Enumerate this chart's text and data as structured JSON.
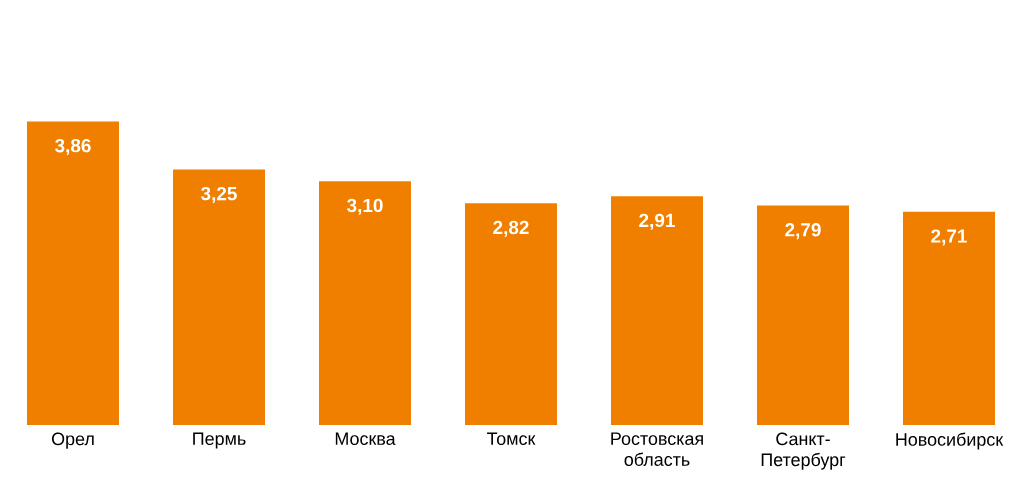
{
  "chart_data": {
    "type": "bar",
    "categories": [
      "Орел",
      "Пермь",
      "Москва",
      "Томск",
      "Ростовская область",
      "Санкт-Петербург",
      "Новосибирск"
    ],
    "values": [
      3.86,
      3.25,
      3.1,
      2.82,
      2.91,
      2.79,
      2.71
    ],
    "value_labels": [
      "3,86",
      "3,25",
      "3,10",
      "2,82",
      "2,91",
      "2,79",
      "2,71"
    ],
    "color": "#f07f00"
  }
}
